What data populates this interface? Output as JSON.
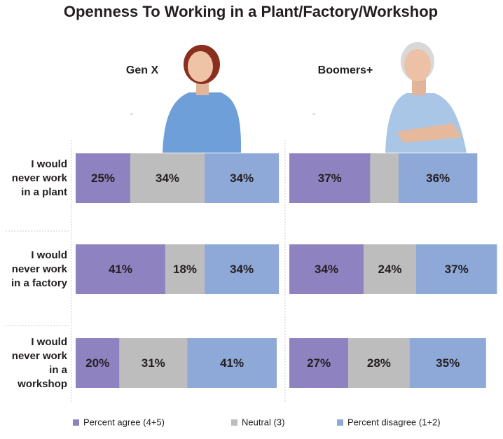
{
  "chart_data": {
    "type": "bar",
    "orientation": "horizontal",
    "stacked": true,
    "title": "Openness To Working in a Plant/Factory/Workshop",
    "panels": [
      "Gen X",
      "Boomers+"
    ],
    "categories": [
      "I would never work in a plant",
      "I would never work in a factory",
      "I would never work in a workshop"
    ],
    "xlim": [
      0,
      100
    ],
    "series": [
      {
        "name": "Percent agree (4+5)",
        "color": "#8f82c0",
        "values": [
          [
            25,
            41,
            20
          ],
          [
            37,
            34,
            27
          ]
        ],
        "value_labels": [
          [
            "25%",
            "41%",
            "20%"
          ],
          [
            "37%",
            "34%",
            "27%"
          ]
        ]
      },
      {
        "name": "Neutral (3)",
        "color": "#bdbdbd",
        "values": [
          [
            34,
            18,
            31
          ],
          [
            13,
            24,
            28
          ]
        ],
        "value_labels": [
          [
            "34%",
            "18%",
            "31%"
          ],
          [
            null,
            "24%",
            "28%"
          ]
        ]
      },
      {
        "name": "Percent disagree (1+2)",
        "color": "#8ea8d8",
        "values": [
          [
            34,
            34,
            41
          ],
          [
            36,
            37,
            35
          ]
        ],
        "value_labels": [
          [
            "34%",
            "34%",
            "41%"
          ],
          [
            "36%",
            "37%",
            "35%"
          ]
        ]
      }
    ],
    "legend": "bottom"
  }
}
